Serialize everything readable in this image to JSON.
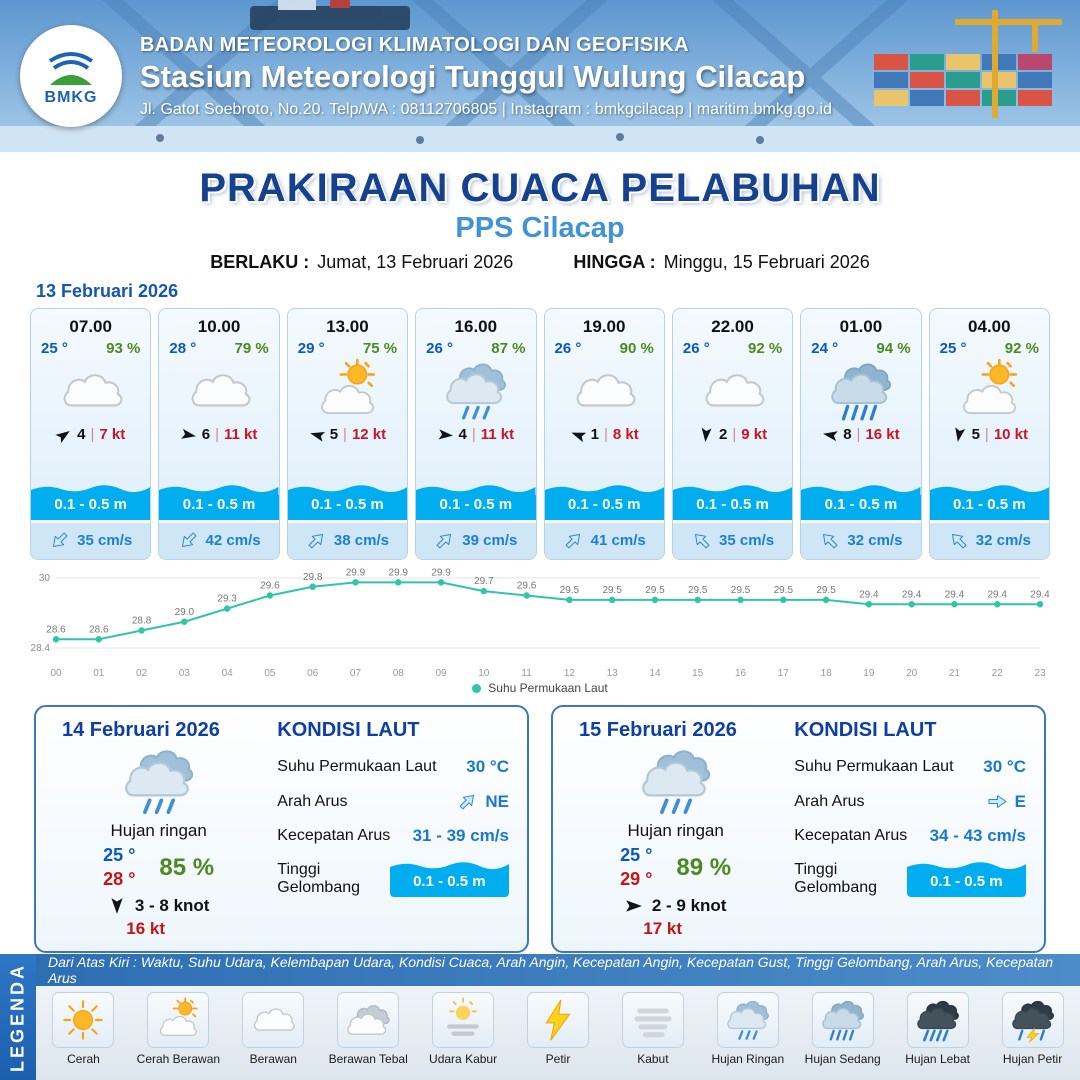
{
  "header": {
    "org": "BADAN METEOROLOGI KLIMATOLOGI DAN GEOFISIKA",
    "station": "Stasiun Meteorologi Tunggul Wulung Cilacap",
    "contact": "Jl. Gatot Soebroto, No.20. Telp/WA : 08112706805 | Instagram : bmkgcilacap | maritim.bmkg.go.id",
    "logo_text": "BMKG"
  },
  "title": {
    "main": "PRAKIRAAN CUACA PELABUHAN",
    "sub": "PPS Cilacap"
  },
  "validity": {
    "berlaku_label": "BERLAKU :",
    "berlaku": "Jumat, 13 Februari 2026",
    "hingga_label": "HINGGA :",
    "hingga": "Minggu, 15 Februari 2026"
  },
  "ui": {
    "separator": "|"
  },
  "colors": {
    "wave_band": "#00aeef",
    "title_blue": "#16418f",
    "subtitle_blue": "#3f93d6",
    "temp_blue": "#0a57c4",
    "humidity_green": "#4c8a1f",
    "speed_red": "#cc1522",
    "chart_line": "#2fc5a8"
  },
  "day1": {
    "date": "13 Februari 2026",
    "hours": [
      {
        "time": "07.00",
        "temp": "25 °",
        "rh": "93 %",
        "icon": "berawan",
        "wind_rot": -35,
        "wind": "4",
        "wind_kt": "7 kt",
        "wave": "0.1 - 0.5 m",
        "cur_rot": 135,
        "cur": "35 cm/s"
      },
      {
        "time": "10.00",
        "temp": "28 °",
        "rh": "79 %",
        "icon": "berawan",
        "wind_rot": 10,
        "wind": "6",
        "wind_kt": "11 kt",
        "wave": "0.1 - 0.5 m",
        "cur_rot": 135,
        "cur": "42 cm/s"
      },
      {
        "time": "13.00",
        "temp": "29 °",
        "rh": "75 %",
        "icon": "cerah-berawan",
        "wind_rot": 195,
        "wind": "5",
        "wind_kt": "12 kt",
        "wave": "0.1 - 0.5 m",
        "cur_rot": -45,
        "cur": "38 cm/s"
      },
      {
        "time": "16.00",
        "temp": "26 °",
        "rh": "87 %",
        "icon": "hujan-ringan",
        "wind_rot": 5,
        "wind": "4",
        "wind_kt": "11 kt",
        "wave": "0.1 - 0.5 m",
        "cur_rot": -45,
        "cur": "39 cm/s"
      },
      {
        "time": "19.00",
        "temp": "26 °",
        "rh": "90 %",
        "icon": "berawan",
        "wind_rot": 200,
        "wind": "1",
        "wind_kt": "8 kt",
        "wave": "0.1 - 0.5 m",
        "cur_rot": -45,
        "cur": "41 cm/s"
      },
      {
        "time": "22.00",
        "temp": "26 °",
        "rh": "92 %",
        "icon": "berawan",
        "wind_rot": 95,
        "wind": "2",
        "wind_kt": "9 kt",
        "wave": "0.1 - 0.5 m",
        "cur_rot": -135,
        "cur": "35 cm/s"
      },
      {
        "time": "01.00",
        "temp": "24 °",
        "rh": "94 %",
        "icon": "hujan-sedang",
        "wind_rot": 190,
        "wind": "8",
        "wind_kt": "16 kt",
        "wave": "0.1 - 0.5 m",
        "cur_rot": -135,
        "cur": "32 cm/s"
      },
      {
        "time": "04.00",
        "temp": "25 °",
        "rh": "92 %",
        "icon": "cerah-berawan",
        "wind_rot": 100,
        "wind": "5",
        "wind_kt": "10 kt",
        "wave": "0.1 - 0.5 m",
        "cur_rot": -135,
        "cur": "32 cm/s"
      }
    ]
  },
  "chart_data": {
    "type": "line",
    "series_name": "Suhu Permukaan Laut",
    "x": [
      "00",
      "01",
      "02",
      "03",
      "04",
      "05",
      "06",
      "07",
      "08",
      "09",
      "10",
      "11",
      "12",
      "13",
      "14",
      "15",
      "16",
      "17",
      "18",
      "19",
      "20",
      "21",
      "22",
      "23"
    ],
    "values": [
      28.6,
      28.6,
      28.8,
      29.0,
      29.3,
      29.6,
      29.8,
      29.9,
      29.9,
      29.9,
      29.7,
      29.6,
      29.5,
      29.5,
      29.5,
      29.5,
      29.5,
      29.5,
      29.5,
      29.4,
      29.4,
      29.4,
      29.4,
      29.4
    ],
    "ylim": [
      28.4,
      30
    ],
    "yticks": [
      30,
      28.4
    ],
    "line_color": "#2fc5a8",
    "grid": false,
    "legend_position": "bottom"
  },
  "day_summaries": [
    {
      "date": "14 Februari 2026",
      "icon": "hujan-ringan",
      "condition": "Hujan ringan",
      "temp_min": "25 °",
      "temp_max": "28 °",
      "rh": "85 %",
      "wind_rot": 90,
      "wind": "3  - 8 knot",
      "gust": "16 kt",
      "sea_title": "KONDISI LAUT",
      "sst_label": "Suhu Permukaan Laut",
      "sst": "30 °C",
      "current_dir_label": "Arah Arus",
      "current_dir": "NE",
      "current_rot": -45,
      "current_speed_label": "Kecepatan Arus",
      "current_speed": "31 -  39 cm/s",
      "wave_label": "Tinggi Gelombang",
      "wave": "0.1 - 0.5 m"
    },
    {
      "date": "15 Februari 2026",
      "icon": "hujan-ringan",
      "condition": "Hujan ringan",
      "temp_min": "25 °",
      "temp_max": "29 °",
      "rh": "89 %",
      "wind_rot": 0,
      "wind": "2  - 9 knot",
      "gust": "17 kt",
      "sea_title": "KONDISI LAUT",
      "sst_label": "Suhu Permukaan Laut",
      "sst": "30 °C",
      "current_dir_label": "Arah Arus",
      "current_dir": "E",
      "current_rot": 0,
      "current_speed_label": "Kecepatan Arus",
      "current_speed": "34 - 43 cm/s",
      "wave_label": "Tinggi Gelombang",
      "wave": "0.1 - 0.5 m"
    }
  ],
  "legend": {
    "title": "LEGENDA",
    "note": "Dari Atas Kiri : Waktu, Suhu Udara, Kelembapan Udara, Kondisi Cuaca, Arah Angin, Kecepatan Angin, Kecepatan Gust, Tinggi Gelombang, Arah Arus, Kecepatan Arus",
    "items": [
      {
        "icon": "cerah",
        "label": "Cerah"
      },
      {
        "icon": "cerah-berawan",
        "label": "Cerah Berawan"
      },
      {
        "icon": "berawan",
        "label": "Berawan"
      },
      {
        "icon": "berawan-tebal",
        "label": "Berawan Tebal"
      },
      {
        "icon": "udara-kabur",
        "label": "Udara Kabur"
      },
      {
        "icon": "petir",
        "label": "Petir"
      },
      {
        "icon": "kabut",
        "label": "Kabut"
      },
      {
        "icon": "hujan-ringan",
        "label": "Hujan Ringan"
      },
      {
        "icon": "hujan-sedang",
        "label": "Hujan Sedang"
      },
      {
        "icon": "hujan-lebat",
        "label": "Hujan Lebat"
      },
      {
        "icon": "hujan-petir",
        "label": "Hujan Petir"
      }
    ]
  }
}
